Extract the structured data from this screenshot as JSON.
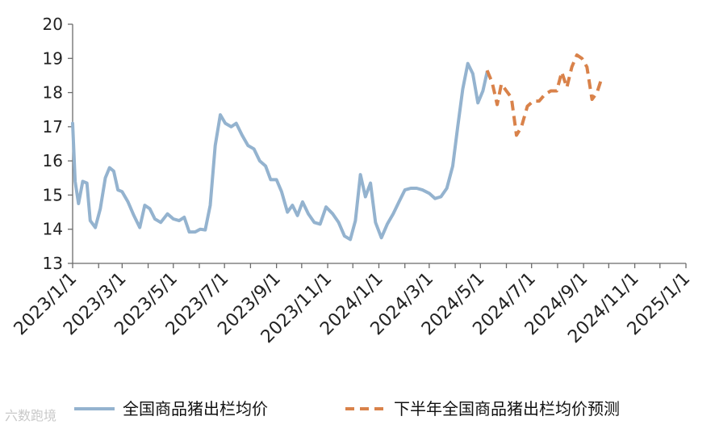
{
  "chart_data": {
    "type": "line",
    "title": "",
    "xlabel": "",
    "ylabel": "",
    "ylim": [
      13,
      20
    ],
    "yticks": [
      13,
      14,
      15,
      16,
      17,
      18,
      19,
      20
    ],
    "xlim": [
      "2023-01-01",
      "2025-01-01"
    ],
    "xtick_labels": [
      "2023/1/1",
      "2023/3/1",
      "2023/5/1",
      "2023/7/1",
      "2023/9/1",
      "2023/11/1",
      "2024/1/1",
      "2024/3/1",
      "2024/5/1",
      "2024/7/1",
      "2024/9/1",
      "2024/11/1",
      "2025/1/1"
    ],
    "grid": false,
    "legend_position": "bottom",
    "series": [
      {
        "name": "全国商品猪出栏均价",
        "color": "#94b3cf",
        "style": "solid",
        "points": [
          [
            "2023-01-01",
            17.1
          ],
          [
            "2023-01-04",
            15.4
          ],
          [
            "2023-01-08",
            14.75
          ],
          [
            "2023-01-13",
            15.4
          ],
          [
            "2023-01-18",
            15.35
          ],
          [
            "2023-01-22",
            14.25
          ],
          [
            "2023-01-28",
            14.05
          ],
          [
            "2023-02-03",
            14.6
          ],
          [
            "2023-02-09",
            15.5
          ],
          [
            "2023-02-14",
            15.8
          ],
          [
            "2023-02-19",
            15.7
          ],
          [
            "2023-02-24",
            15.15
          ],
          [
            "2023-03-01",
            15.1
          ],
          [
            "2023-03-08",
            14.8
          ],
          [
            "2023-03-15",
            14.4
          ],
          [
            "2023-03-22",
            14.05
          ],
          [
            "2023-03-28",
            14.7
          ],
          [
            "2023-04-03",
            14.6
          ],
          [
            "2023-04-09",
            14.3
          ],
          [
            "2023-04-16",
            14.2
          ],
          [
            "2023-04-24",
            14.45
          ],
          [
            "2023-05-01",
            14.3
          ],
          [
            "2023-05-08",
            14.25
          ],
          [
            "2023-05-14",
            14.35
          ],
          [
            "2023-05-20",
            13.92
          ],
          [
            "2023-05-27",
            13.92
          ],
          [
            "2023-06-02",
            14.0
          ],
          [
            "2023-06-08",
            13.98
          ],
          [
            "2023-06-14",
            14.7
          ],
          [
            "2023-06-20",
            16.45
          ],
          [
            "2023-06-26",
            17.35
          ],
          [
            "2023-07-02",
            17.1
          ],
          [
            "2023-07-09",
            17.0
          ],
          [
            "2023-07-15",
            17.1
          ],
          [
            "2023-07-22",
            16.75
          ],
          [
            "2023-07-29",
            16.45
          ],
          [
            "2023-08-05",
            16.35
          ],
          [
            "2023-08-12",
            16.0
          ],
          [
            "2023-08-19",
            15.85
          ],
          [
            "2023-08-25",
            15.45
          ],
          [
            "2023-09-01",
            15.45
          ],
          [
            "2023-09-07",
            15.1
          ],
          [
            "2023-09-14",
            14.5
          ],
          [
            "2023-09-20",
            14.7
          ],
          [
            "2023-09-26",
            14.4
          ],
          [
            "2023-10-02",
            14.8
          ],
          [
            "2023-10-09",
            14.45
          ],
          [
            "2023-10-16",
            14.2
          ],
          [
            "2023-10-23",
            14.15
          ],
          [
            "2023-10-30",
            14.65
          ],
          [
            "2023-11-07",
            14.45
          ],
          [
            "2023-11-14",
            14.2
          ],
          [
            "2023-11-21",
            13.8
          ],
          [
            "2023-11-28",
            13.7
          ],
          [
            "2023-12-04",
            14.25
          ],
          [
            "2023-12-10",
            15.6
          ],
          [
            "2023-12-16",
            14.95
          ],
          [
            "2023-12-22",
            15.35
          ],
          [
            "2023-12-28",
            14.2
          ],
          [
            "2024-01-04",
            13.75
          ],
          [
            "2024-01-11",
            14.15
          ],
          [
            "2024-01-18",
            14.45
          ],
          [
            "2024-01-25",
            14.8
          ],
          [
            "2024-02-01",
            15.15
          ],
          [
            "2024-02-08",
            15.2
          ],
          [
            "2024-02-15",
            15.2
          ],
          [
            "2024-02-22",
            15.15
          ],
          [
            "2024-03-01",
            15.05
          ],
          [
            "2024-03-08",
            14.9
          ],
          [
            "2024-03-15",
            14.95
          ],
          [
            "2024-03-22",
            15.2
          ],
          [
            "2024-03-29",
            15.85
          ],
          [
            "2024-04-04",
            17.0
          ],
          [
            "2024-04-10",
            18.1
          ],
          [
            "2024-04-16",
            18.85
          ],
          [
            "2024-04-22",
            18.55
          ],
          [
            "2024-04-28",
            17.7
          ],
          [
            "2024-05-04",
            18.05
          ],
          [
            "2024-05-09",
            18.6
          ]
        ]
      },
      {
        "name": "下半年全国商品猪出栏均价预测",
        "color": "#d9824a",
        "style": "dashed",
        "points": [
          [
            "2024-05-09",
            18.65
          ],
          [
            "2024-05-15",
            18.3
          ],
          [
            "2024-05-21",
            17.65
          ],
          [
            "2024-05-26",
            18.25
          ],
          [
            "2024-06-01",
            18.05
          ],
          [
            "2024-06-07",
            17.85
          ],
          [
            "2024-06-13",
            16.75
          ],
          [
            "2024-06-19",
            17.0
          ],
          [
            "2024-06-26",
            17.6
          ],
          [
            "2024-07-03",
            17.75
          ],
          [
            "2024-07-10",
            17.75
          ],
          [
            "2024-07-17",
            17.95
          ],
          [
            "2024-07-24",
            18.05
          ],
          [
            "2024-07-31",
            18.05
          ],
          [
            "2024-08-06",
            18.6
          ],
          [
            "2024-08-12",
            18.15
          ],
          [
            "2024-08-18",
            18.75
          ],
          [
            "2024-08-24",
            19.1
          ],
          [
            "2024-08-30",
            19.0
          ],
          [
            "2024-09-05",
            18.75
          ],
          [
            "2024-09-11",
            17.8
          ],
          [
            "2024-09-17",
            18.0
          ],
          [
            "2024-09-23",
            18.45
          ]
        ]
      }
    ]
  },
  "watermark": "六数跑境"
}
